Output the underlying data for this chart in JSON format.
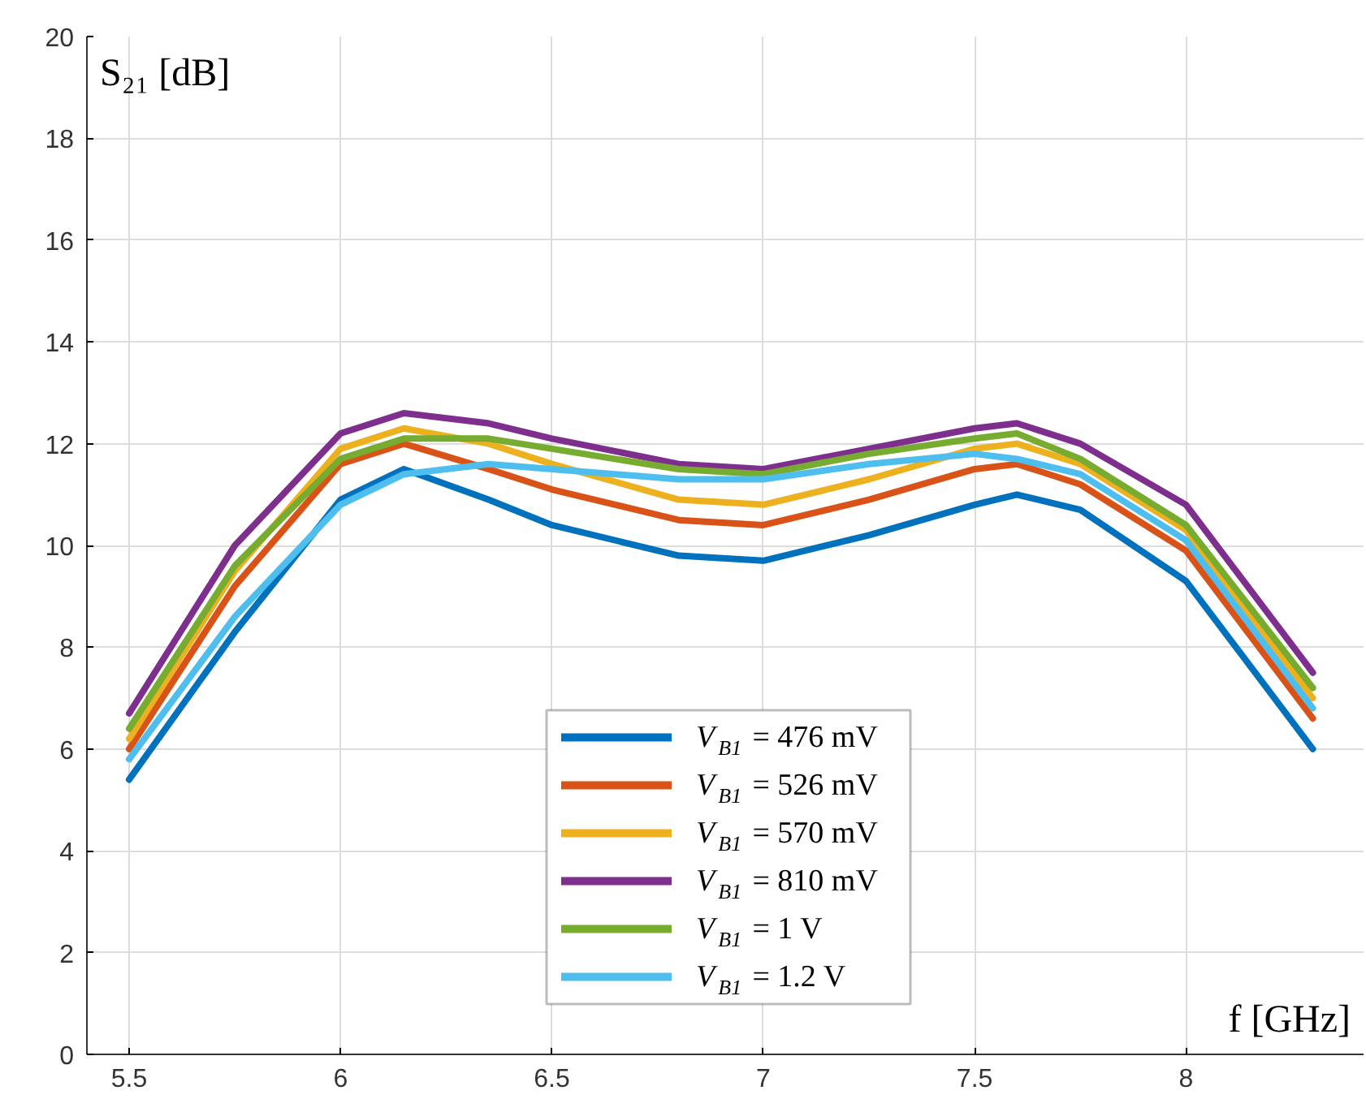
{
  "chart_data": {
    "type": "line",
    "xlabel": "f [GHz]",
    "ylabel": "S₂₁ [dB]",
    "x": [
      5.5,
      5.75,
      6.0,
      6.15,
      6.35,
      6.5,
      6.8,
      7.0,
      7.25,
      7.5,
      7.6,
      7.75,
      8.0,
      8.3
    ],
    "series": [
      {
        "name": "V$_{B1}$ = 476 mV",
        "color": "#0072bd",
        "values": [
          5.4,
          8.3,
          10.9,
          11.5,
          10.9,
          10.4,
          9.8,
          9.7,
          10.2,
          10.8,
          11.0,
          10.7,
          9.3,
          6.0
        ]
      },
      {
        "name": "V$_{B1}$ = 526 mV",
        "color": "#d95319",
        "values": [
          6.0,
          9.2,
          11.6,
          12.0,
          11.5,
          11.1,
          10.5,
          10.4,
          10.9,
          11.5,
          11.6,
          11.2,
          9.9,
          6.6
        ]
      },
      {
        "name": "V$_{B1}$ = 570 mV",
        "color": "#edb120",
        "values": [
          6.2,
          9.5,
          11.9,
          12.3,
          12.0,
          11.6,
          10.9,
          10.8,
          11.3,
          11.9,
          12.0,
          11.6,
          10.3,
          7.0
        ]
      },
      {
        "name": "V$_{B1}$ = 810 mV",
        "color": "#7e2f8e",
        "values": [
          6.7,
          10.0,
          12.2,
          12.6,
          12.4,
          12.1,
          11.6,
          11.5,
          11.9,
          12.3,
          12.4,
          12.0,
          10.8,
          7.5
        ]
      },
      {
        "name": "V$_{B1}$ = 1 V",
        "color": "#77ac30",
        "values": [
          6.4,
          9.6,
          11.7,
          12.1,
          12.1,
          11.9,
          11.5,
          11.4,
          11.8,
          12.1,
          12.2,
          11.7,
          10.4,
          7.2
        ]
      },
      {
        "name": "V$_{B1}$ = 1.2 V",
        "color": "#4dbeee",
        "values": [
          5.8,
          8.6,
          10.8,
          11.4,
          11.6,
          11.5,
          11.3,
          11.3,
          11.6,
          11.8,
          11.7,
          11.4,
          10.1,
          6.8
        ]
      }
    ],
    "xlim": [
      5.4,
      8.42
    ],
    "ylim": [
      0,
      20
    ],
    "xticks": [
      5.5,
      6,
      6.5,
      7,
      7.5,
      8
    ],
    "yticks": [
      0,
      2,
      4,
      6,
      8,
      10,
      12,
      14,
      16,
      18,
      20
    ],
    "grid": true,
    "legend": "bottom",
    "marker": "none",
    "line_style": "solid"
  }
}
